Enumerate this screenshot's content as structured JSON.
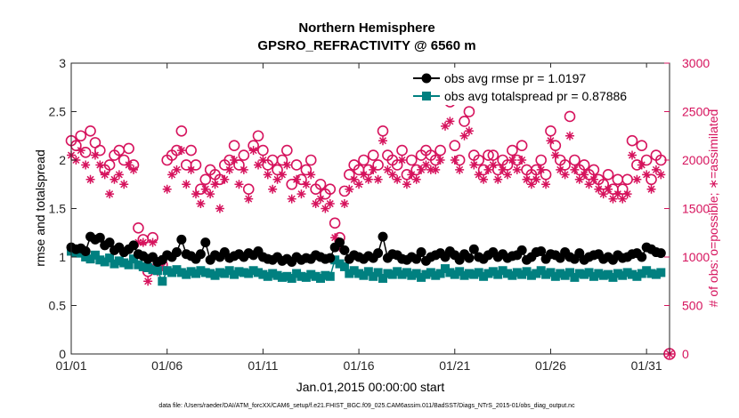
{
  "chart_data": {
    "type": "line",
    "title": "Northern Hemisphere",
    "subtitle": "GPSRO_REFRACTIVITY @ 6560 m",
    "xlabel": "Jan.01,2015 00:00:00 start",
    "ylabel_left": "rmse and totalspread",
    "ylabel_right": "# of obs: o=possible; ∗=assimilated",
    "footer": "data file: /Users/raeder/DAI/ATM_forcXX/CAM6_setup/f.e21.FHIST_BGC.f09_025.CAM6assim.011/BadSST/Diags_NTrS_2015-01/obs_diag_output.nc",
    "xlim": [
      1,
      32.2
    ],
    "ylim_left": [
      0,
      3
    ],
    "ylim_right": [
      0,
      3000
    ],
    "x_ticks": [
      1,
      6,
      11,
      16,
      21,
      26,
      31
    ],
    "x_tick_labels": [
      "01/01",
      "01/06",
      "01/11",
      "01/16",
      "01/21",
      "01/26",
      "01/31"
    ],
    "y_ticks_left": [
      0,
      0.5,
      1,
      1.5,
      2,
      2.5,
      3
    ],
    "y_tick_labels_left": [
      "0",
      "0.5",
      "1",
      "1.5",
      "2",
      "2.5",
      "3"
    ],
    "y_ticks_right": [
      0,
      500,
      1000,
      1500,
      2000,
      2500,
      3000
    ],
    "y_tick_labels_right": [
      "0",
      "500",
      "1000",
      "1500",
      "2000",
      "2500",
      "3000"
    ],
    "legend_position": "top-right",
    "colors": {
      "rmse": "#000000",
      "spread": "#008080",
      "obs": "#d6135d",
      "axis": "#262626"
    },
    "series": [
      {
        "name": "obs avg rmse pr = 1.0197",
        "axis": "left",
        "marker": "circle",
        "x": [
          1.0,
          1.25,
          1.5,
          1.75,
          2.0,
          2.25,
          2.5,
          2.75,
          3.0,
          3.25,
          3.5,
          3.75,
          4.0,
          4.25,
          4.5,
          4.75,
          5.0,
          5.25,
          5.5,
          5.75,
          6.0,
          6.25,
          6.5,
          6.75,
          7.0,
          7.25,
          7.5,
          7.75,
          8.0,
          8.25,
          8.5,
          8.75,
          9.0,
          9.25,
          9.5,
          9.75,
          10.0,
          10.25,
          10.5,
          10.75,
          11.0,
          11.25,
          11.5,
          11.75,
          12.0,
          12.25,
          12.5,
          12.75,
          13.0,
          13.25,
          13.5,
          13.75,
          14.0,
          14.25,
          14.5,
          14.75,
          15.0,
          15.25,
          15.5,
          15.75,
          16.0,
          16.25,
          16.5,
          16.75,
          17.0,
          17.25,
          17.5,
          17.75,
          18.0,
          18.25,
          18.5,
          18.75,
          19.0,
          19.25,
          19.5,
          19.75,
          20.0,
          20.25,
          20.5,
          20.75,
          21.0,
          21.25,
          21.5,
          21.75,
          22.0,
          22.25,
          22.5,
          22.75,
          23.0,
          23.25,
          23.5,
          23.75,
          24.0,
          24.25,
          24.5,
          24.75,
          25.0,
          25.25,
          25.5,
          25.75,
          26.0,
          26.25,
          26.5,
          26.75,
          27.0,
          27.25,
          27.5,
          27.75,
          28.0,
          28.25,
          28.5,
          28.75,
          29.0,
          29.25,
          29.5,
          29.75,
          30.0,
          30.25,
          30.5,
          30.75,
          31.0,
          31.25,
          31.5,
          31.75
        ],
        "values": [
          1.1,
          1.08,
          1.09,
          1.06,
          1.21,
          1.18,
          1.2,
          1.12,
          1.15,
          1.07,
          1.1,
          1.05,
          1.08,
          1.12,
          1.03,
          1.01,
          0.98,
          1.0,
          0.95,
          0.97,
          1.02,
          1.0,
          1.05,
          1.18,
          1.03,
          1.01,
          0.98,
          1.03,
          1.15,
          0.97,
          1.02,
          1.0,
          1.05,
          0.99,
          1.01,
          1.03,
          1.0,
          1.04,
          1.02,
          1.06,
          1.0,
          0.98,
          0.97,
          1.0,
          0.96,
          0.98,
          0.95,
          1.0,
          0.97,
          0.99,
          0.98,
          1.02,
          1.0,
          0.98,
          0.99,
          1.1,
          1.15,
          1.07,
          0.98,
          1.02,
          1.0,
          0.98,
          1.01,
          0.99,
          1.04,
          1.21,
          0.99,
          1.03,
          1.02,
          0.98,
          0.97,
          1.0,
          0.98,
          1.05,
          0.96,
          1.0,
          1.02,
          1.04,
          1.0,
          1.06,
          1.02,
          0.97,
          1.03,
          0.99,
          1.08,
          1.0,
          0.98,
          1.02,
          1.05,
          1.0,
          1.03,
          0.99,
          1.01,
          1.02,
          1.07,
          0.97,
          1.0,
          1.05,
          1.06,
          0.98,
          1.03,
          1.02,
          0.99,
          1.05,
          1.0,
          0.98,
          1.04,
          0.97,
          1.0,
          1.02,
          1.03,
          0.98,
          1.0,
          0.97,
          1.02,
          0.99,
          1.0,
          1.03,
          1.04,
          1.0,
          1.1,
          1.08,
          1.05,
          1.04
        ]
      },
      {
        "name": "obs avg totalspread pr = 0.87886",
        "axis": "left",
        "marker": "square",
        "x": [
          1.0,
          1.25,
          1.5,
          1.75,
          2.0,
          2.25,
          2.5,
          2.75,
          3.0,
          3.25,
          3.5,
          3.75,
          4.0,
          4.25,
          4.5,
          4.75,
          5.0,
          5.25,
          5.5,
          5.75,
          6.0,
          6.25,
          6.5,
          6.75,
          7.0,
          7.25,
          7.5,
          7.75,
          8.0,
          8.25,
          8.5,
          8.75,
          9.0,
          9.25,
          9.5,
          9.75,
          10.0,
          10.25,
          10.5,
          10.75,
          11.0,
          11.25,
          11.5,
          11.75,
          12.0,
          12.25,
          12.5,
          12.75,
          13.0,
          13.25,
          13.5,
          13.75,
          14.0,
          14.25,
          14.5,
          14.75,
          15.0,
          15.25,
          15.5,
          15.75,
          16.0,
          16.25,
          16.5,
          16.75,
          17.0,
          17.25,
          17.5,
          17.75,
          18.0,
          18.25,
          18.5,
          18.75,
          19.0,
          19.25,
          19.5,
          19.75,
          20.0,
          20.25,
          20.5,
          20.75,
          21.0,
          21.25,
          21.5,
          21.75,
          22.0,
          22.25,
          22.5,
          22.75,
          23.0,
          23.25,
          23.5,
          23.75,
          24.0,
          24.25,
          24.5,
          24.75,
          25.0,
          25.25,
          25.5,
          25.75,
          26.0,
          26.25,
          26.5,
          26.75,
          27.0,
          27.25,
          27.5,
          27.75,
          28.0,
          28.25,
          28.5,
          28.75,
          29.0,
          29.25,
          29.5,
          29.75,
          30.0,
          30.25,
          30.5,
          30.75,
          31.0,
          31.25,
          31.5,
          31.75
        ],
        "values": [
          1.06,
          1.05,
          1.04,
          1.0,
          0.98,
          1.02,
          0.97,
          0.95,
          0.99,
          0.93,
          0.96,
          0.94,
          0.92,
          0.98,
          0.92,
          0.9,
          0.89,
          0.87,
          0.86,
          0.75,
          0.86,
          0.84,
          0.87,
          0.84,
          0.82,
          0.85,
          0.83,
          0.86,
          0.84,
          0.83,
          0.81,
          0.84,
          0.83,
          0.86,
          0.82,
          0.85,
          0.84,
          0.83,
          0.86,
          0.84,
          0.82,
          0.8,
          0.83,
          0.81,
          0.79,
          0.8,
          0.78,
          0.83,
          0.8,
          0.79,
          0.82,
          0.8,
          0.78,
          0.81,
          0.8,
          0.97,
          0.93,
          0.9,
          0.83,
          0.86,
          0.83,
          0.81,
          0.85,
          0.8,
          0.84,
          0.78,
          0.83,
          0.82,
          0.85,
          0.82,
          0.84,
          0.81,
          0.83,
          0.79,
          0.82,
          0.84,
          0.81,
          0.83,
          0.88,
          0.84,
          0.82,
          0.85,
          0.81,
          0.83,
          0.82,
          0.84,
          0.8,
          0.83,
          0.85,
          0.82,
          0.86,
          0.83,
          0.81,
          0.84,
          0.82,
          0.85,
          0.81,
          0.83,
          0.86,
          0.82,
          0.84,
          0.8,
          0.83,
          0.81,
          0.84,
          0.79,
          0.83,
          0.82,
          0.84,
          0.8,
          0.83,
          0.81,
          0.82,
          0.79,
          0.83,
          0.81,
          0.84,
          0.82,
          0.8,
          0.83,
          0.86,
          0.83,
          0.82,
          0.84
        ]
      },
      {
        "name": "possible",
        "axis": "right",
        "marker": "open-circle",
        "x": [
          1.0,
          1.25,
          1.5,
          1.75,
          2.0,
          2.25,
          2.5,
          2.75,
          3.0,
          3.25,
          3.5,
          3.75,
          4.0,
          4.25,
          4.5,
          4.75,
          5.0,
          5.25,
          5.5,
          5.75,
          6.0,
          6.25,
          6.5,
          6.75,
          7.0,
          7.25,
          7.5,
          7.75,
          8.0,
          8.25,
          8.5,
          8.75,
          9.0,
          9.25,
          9.5,
          9.75,
          10.0,
          10.25,
          10.5,
          10.75,
          11.0,
          11.25,
          11.5,
          11.75,
          12.0,
          12.25,
          12.5,
          12.75,
          13.0,
          13.25,
          13.5,
          13.75,
          14.0,
          14.25,
          14.5,
          14.75,
          15.0,
          15.25,
          15.5,
          15.75,
          16.0,
          16.25,
          16.5,
          16.75,
          17.0,
          17.25,
          17.5,
          17.75,
          18.0,
          18.25,
          18.5,
          18.75,
          19.0,
          19.25,
          19.5,
          19.75,
          20.0,
          20.25,
          20.5,
          20.75,
          21.0,
          21.25,
          21.5,
          21.75,
          22.0,
          22.25,
          22.5,
          22.75,
          23.0,
          23.25,
          23.5,
          23.75,
          24.0,
          24.25,
          24.5,
          24.75,
          25.0,
          25.25,
          25.5,
          25.75,
          26.0,
          26.25,
          26.5,
          26.75,
          27.0,
          27.25,
          27.5,
          27.75,
          28.0,
          28.25,
          28.5,
          28.75,
          29.0,
          29.25,
          29.5,
          29.75,
          30.0,
          30.25,
          30.5,
          30.75,
          31.0,
          31.25,
          31.5,
          31.75
        ],
        "values": [
          2200,
          2150,
          2250,
          2080,
          2300,
          2180,
          2100,
          1900,
          1950,
          2050,
          2100,
          2000,
          2120,
          1950,
          1300,
          1180,
          850,
          1200,
          900,
          920,
          2000,
          2050,
          2100,
          2300,
          1950,
          2100,
          1950,
          1700,
          1800,
          1900,
          1850,
          1800,
          1950,
          2000,
          2150,
          1950,
          2050,
          1700,
          2150,
          2250,
          2100,
          1950,
          2000,
          1900,
          2000,
          2100,
          1750,
          1950,
          1800,
          1900,
          2000,
          1700,
          1750,
          1650,
          1700,
          1350,
          1200,
          1680,
          1850,
          1950,
          1900,
          2000,
          1900,
          2050,
          1950,
          2300,
          2050,
          2000,
          1950,
          2100,
          1850,
          2000,
          1900,
          2050,
          2100,
          2050,
          2000,
          2100,
          2650,
          2600,
          2150,
          2000,
          2400,
          2500,
          2050,
          2000,
          1900,
          2050,
          2050,
          1900,
          2000,
          1950,
          2100,
          2000,
          2150,
          1900,
          1850,
          1900,
          2000,
          1850,
          2300,
          2150,
          2000,
          1950,
          2450,
          2000,
          1900,
          1950,
          1850,
          1900,
          1800,
          1750,
          1850,
          1700,
          1800,
          1700,
          1800,
          2200,
          1950,
          2150,
          2000,
          1800,
          2050,
          2000
        ]
      },
      {
        "name": "assimilated",
        "axis": "right",
        "marker": "asterisk",
        "x": [
          1.0,
          1.25,
          1.5,
          1.75,
          2.0,
          2.25,
          2.5,
          2.75,
          3.0,
          3.25,
          3.5,
          3.75,
          4.0,
          4.25,
          4.5,
          4.75,
          5.0,
          5.25,
          5.5,
          5.75,
          6.0,
          6.25,
          6.5,
          6.75,
          7.0,
          7.25,
          7.5,
          7.75,
          8.0,
          8.25,
          8.5,
          8.75,
          9.0,
          9.25,
          9.5,
          9.75,
          10.0,
          10.25,
          10.5,
          10.75,
          11.0,
          11.25,
          11.5,
          11.75,
          12.0,
          12.25,
          12.5,
          12.75,
          13.0,
          13.25,
          13.5,
          13.75,
          14.0,
          14.25,
          14.5,
          14.75,
          15.0,
          15.25,
          15.5,
          15.75,
          16.0,
          16.25,
          16.5,
          16.75,
          17.0,
          17.25,
          17.5,
          17.75,
          18.0,
          18.25,
          18.5,
          18.75,
          19.0,
          19.25,
          19.5,
          19.75,
          20.0,
          20.25,
          20.5,
          20.75,
          21.0,
          21.25,
          21.5,
          21.75,
          22.0,
          22.25,
          22.5,
          22.75,
          23.0,
          23.25,
          23.5,
          23.75,
          24.0,
          24.25,
          24.5,
          24.75,
          25.0,
          25.25,
          25.5,
          25.75,
          26.0,
          26.25,
          26.5,
          26.75,
          27.0,
          27.25,
          27.5,
          27.75,
          28.0,
          28.25,
          28.5,
          28.75,
          29.0,
          29.25,
          29.5,
          29.75,
          30.0,
          30.25,
          30.5,
          30.75,
          31.0,
          31.25,
          31.5,
          31.75
        ],
        "values": [
          2050,
          2000,
          2100,
          1950,
          1800,
          2050,
          1950,
          1850,
          1650,
          1800,
          1850,
          1750,
          1950,
          1900,
          1150,
          1150,
          750,
          1150,
          850,
          900,
          1700,
          1850,
          1900,
          2100,
          1750,
          1900,
          1650,
          1550,
          1700,
          1650,
          1750,
          1500,
          1800,
          1900,
          2000,
          1750,
          1900,
          1600,
          2100,
          1950,
          2000,
          1850,
          1700,
          1800,
          1850,
          1950,
          1600,
          1800,
          1650,
          1750,
          1850,
          1550,
          1600,
          1500,
          1550,
          1200,
          1100,
          1550,
          1700,
          1800,
          1750,
          1850,
          1800,
          1900,
          1800,
          2200,
          1900,
          1850,
          1800,
          2000,
          1750,
          1850,
          1800,
          1900,
          1950,
          1900,
          1900,
          2000,
          2350,
          2400,
          2000,
          1900,
          2250,
          2300,
          1950,
          1850,
          1800,
          1900,
          1950,
          1800,
          1900,
          1850,
          2000,
          1900,
          2000,
          1800,
          1750,
          1800,
          1900,
          1750,
          2200,
          2050,
          1900,
          1850,
          2250,
          1900,
          1800,
          1850,
          1750,
          1800,
          1700,
          1650,
          1700,
          1600,
          1650,
          1600,
          1650,
          2050,
          1800,
          1950,
          1850,
          1700,
          1900,
          1850
        ]
      }
    ]
  }
}
